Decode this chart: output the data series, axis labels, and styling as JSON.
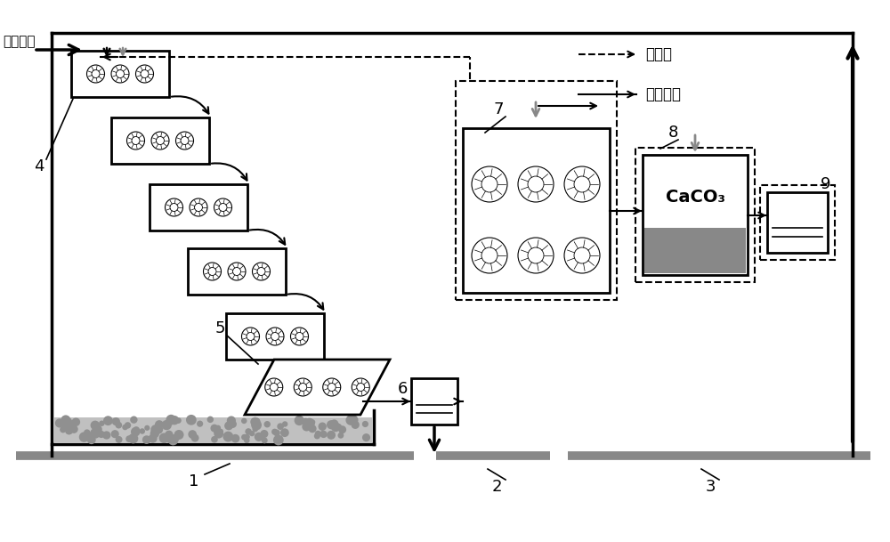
{
  "legend_dashed": "内回流",
  "legend_solid": "水流方向",
  "label_wastewater": "酸性废水",
  "label_caco3": "CaCO₃",
  "bg_color": "#ffffff",
  "gray": "#888888",
  "lgray": "#c0c0c0",
  "dgray": "#909090",
  "black": "#000000"
}
